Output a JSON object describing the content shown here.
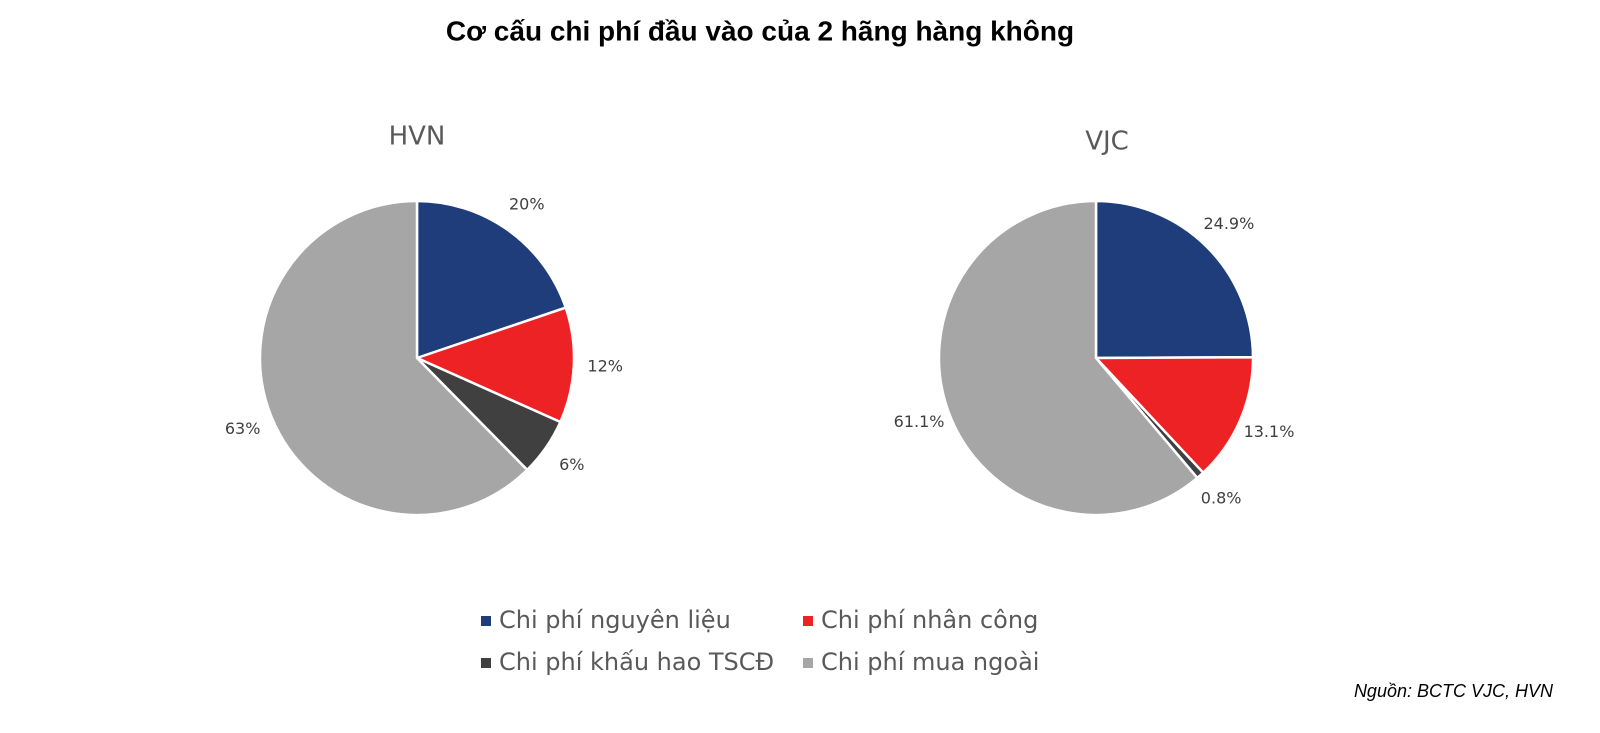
{
  "title": "Cơ cấu chi phí đầu vào của 2 hãng hàng không",
  "source": "Nguồn: BCTC VJC, HVN",
  "chart_data": [
    {
      "type": "pie",
      "title": "HVN",
      "categories": [
        "Chi phí nguyên liệu",
        "Chi phí nhân công",
        "Chi phí khấu hao TSCĐ",
        "Chi phí mua ngoài"
      ],
      "values": [
        20,
        12,
        6,
        63
      ],
      "value_labels": [
        "20%",
        "12%",
        "6%",
        "63%"
      ],
      "colors": [
        "#1f3d7a",
        "#ed2224",
        "#404040",
        "#a6a6a6"
      ]
    },
    {
      "type": "pie",
      "title": "VJC",
      "categories": [
        "Chi phí nguyên liệu",
        "Chi phí nhân công",
        "Chi phí khấu hao TSCĐ",
        "Chi phí mua ngoài"
      ],
      "values": [
        24.9,
        13.1,
        0.8,
        61.1
      ],
      "value_labels": [
        "24.9%",
        "13.1%",
        "0.8%",
        "61.1%"
      ],
      "colors": [
        "#1f3d7a",
        "#ed2224",
        "#404040",
        "#a6a6a6"
      ]
    }
  ]
}
